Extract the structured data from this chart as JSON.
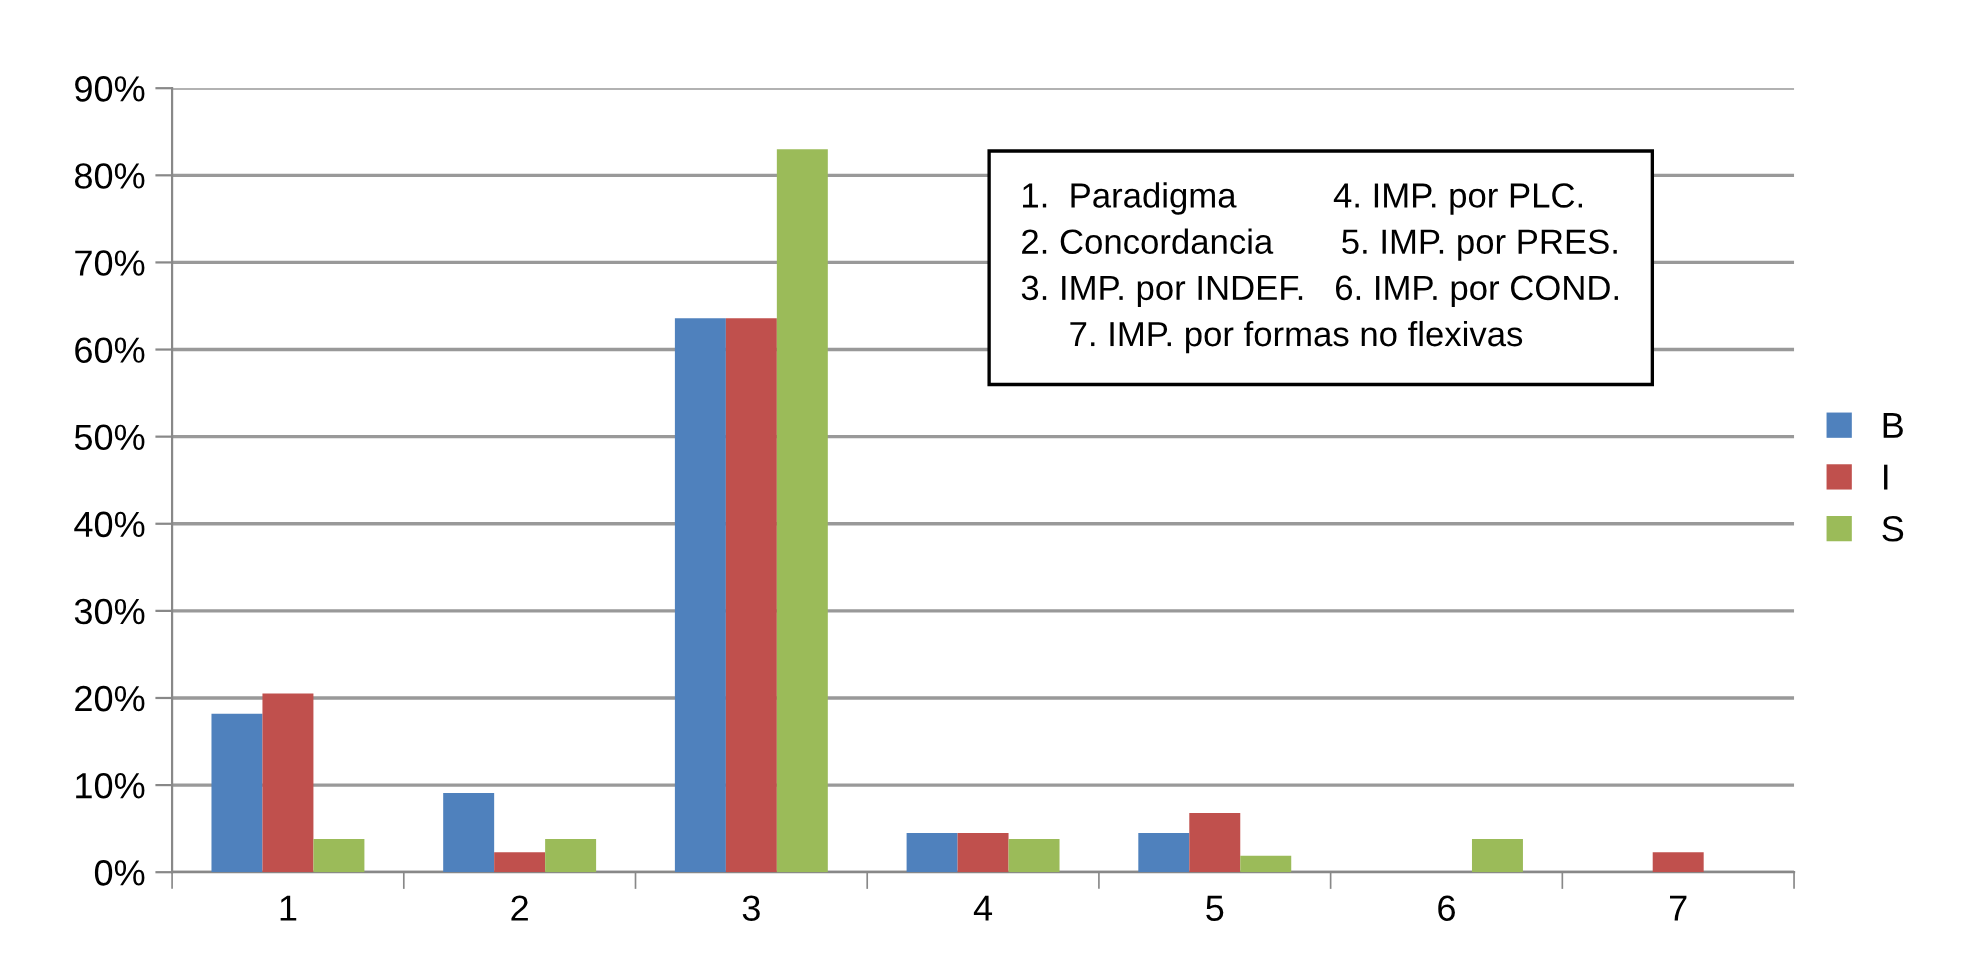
{
  "chart_data": {
    "type": "bar",
    "categories": [
      "1",
      "2",
      "3",
      "4",
      "5",
      "6",
      "7"
    ],
    "series": [
      {
        "name": "B",
        "color": "#4f81bd",
        "values": [
          18.2,
          9.1,
          63.6,
          4.5,
          4.5,
          0,
          0
        ]
      },
      {
        "name": "I",
        "color": "#c0504d",
        "values": [
          20.5,
          2.3,
          63.6,
          4.5,
          6.8,
          0,
          2.3
        ]
      },
      {
        "name": "S",
        "color": "#9bbb59",
        "values": [
          3.8,
          3.8,
          83.0,
          3.8,
          1.9,
          3.8,
          0
        ]
      }
    ],
    "ylim": [
      0,
      90
    ],
    "yticks": [
      {
        "value": 0,
        "label": "0%"
      },
      {
        "value": 10,
        "label": "10%"
      },
      {
        "value": 20,
        "label": "20%"
      },
      {
        "value": 30,
        "label": "30%"
      },
      {
        "value": 40,
        "label": "40%"
      },
      {
        "value": 50,
        "label": "50%"
      },
      {
        "value": 60,
        "label": "60%"
      },
      {
        "value": 70,
        "label": "70%"
      },
      {
        "value": 80,
        "label": "80%"
      },
      {
        "value": 90,
        "label": "90%"
      }
    ],
    "grid": "y",
    "legend": "right",
    "annotations": [
      "1.  Paradigma          4. IMP. por PLC.\n2. Concordancia       5. IMP. por PRES.\n3. IMP. por INDEF.   6. IMP. por COND.\n     7. IMP. por formas no flexivas"
    ]
  }
}
